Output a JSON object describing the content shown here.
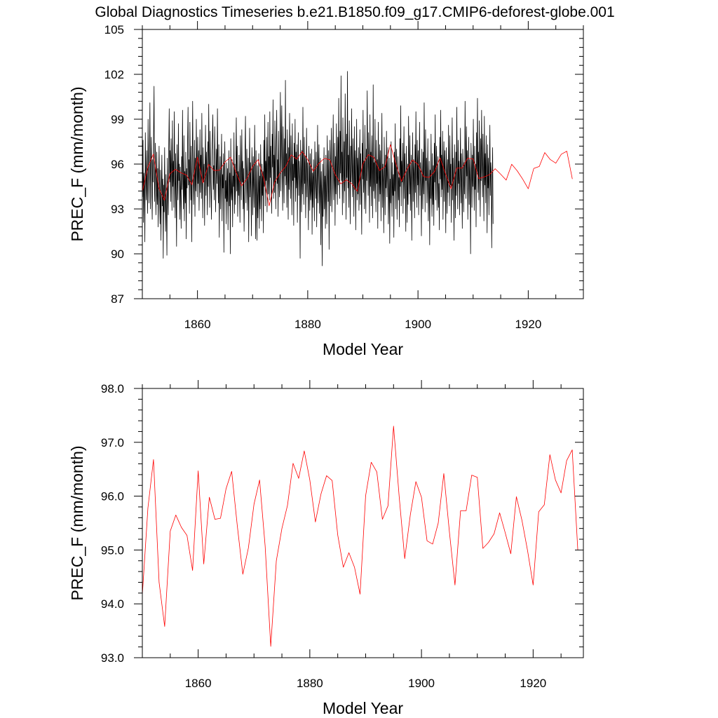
{
  "figure": {
    "title": "Global Diagnostics Timeseries b.e21.B1850.f09_g17.CMIP6-deforest-globe.001"
  },
  "chart_data": [
    {
      "type": "line",
      "title": "Global Diagnostics Timeseries b.e21.B1850.f09_g17.CMIP6-deforest-globe.001",
      "xlabel": "Model Year",
      "ylabel": "PREC_F (mm/month)",
      "xlim": [
        1850,
        1930
      ],
      "ylim": [
        87,
        105
      ],
      "xticks": [
        1860,
        1880,
        1900,
        1920
      ],
      "yticks": [
        87,
        90,
        93,
        96,
        99,
        102,
        105
      ],
      "ytick_labels": [
        "87",
        "90",
        "93",
        "96",
        "99",
        "102",
        "105"
      ],
      "grid": false,
      "legend": "none",
      "series": [
        {
          "kind": "monthly",
          "color": "#000000",
          "start": 1850.0417,
          "step": 0.08333,
          "values": [
            93.8,
            97.6,
            92.1,
            95.4,
            94.7,
            90.8,
            98.1,
            95.2,
            93.6,
            96.9,
            94.4,
            92.7,
            99.0,
            95.9,
            93.4,
            96.6,
            100.1,
            93.0,
            95.7,
            97.8,
            94.2,
            92.3,
            96.3,
            94.8,
            98.0,
            101.2,
            93.5,
            95.1,
            97.4,
            92.6,
            94.0,
            96.8,
            93.3,
            95.7,
            91.8,
            94.9,
            97.2,
            93.9,
            92.0,
            95.6,
            90.9,
            94.2,
            96.6,
            93.2,
            95.0,
            89.7,
            94.6,
            92.8,
            97.1,
            93.4,
            91.5,
            95.3,
            93.0,
            89.9,
            96.4,
            94.1,
            92.6,
            97.0,
            99.7,
            94.8,
            96.9,
            93.5,
            97.7,
            95.6,
            92.9,
            98.9,
            94.5,
            96.2,
            93.1,
            99.5,
            95.8,
            92.4,
            96.7,
            94.0,
            90.5,
            97.3,
            95.0,
            93.6,
            98.7,
            94.9,
            96.0,
            92.3,
            95.8,
            93.8,
            91.7,
            96.5,
            94.3,
            99.6,
            95.2,
            93.0,
            97.9,
            92.2,
            95.5,
            93.4,
            96.8,
            91.0,
            95.7,
            94.4,
            97.4,
            99.8,
            94.6,
            96.3,
            92.7,
            98.8,
            95.9,
            93.6,
            97.2,
            90.8,
            94.9,
            100.2,
            96.1,
            93.3,
            95.0,
            97.6,
            92.5,
            96.4,
            94.2,
            99.0,
            95.6,
            93.8,
            97.8,
            94.7,
            96.9,
            92.9,
            95.4,
            98.3,
            94.1,
            96.6,
            93.7,
            99.4,
            95.3,
            92.4,
            97.1,
            94.8,
            96.0,
            91.9,
            95.7,
            98.6,
            93.9,
            96.8,
            95.2,
            92.6,
            97.5,
            94.5,
            100.0,
            96.2,
            93.1,
            98.2,
            95.5,
            94.0,
            92.3,
            96.9,
            97.8,
            99.3,
            94.3,
            95.9,
            93.6,
            98.5,
            96.4,
            92.8,
            95.1,
            97.0,
            94.7,
            99.7,
            95.6,
            93.4,
            97.3,
            91.1,
            94.8,
            96.5,
            93.0,
            95.8,
            98.0,
            92.2,
            95.3,
            94.4,
            96.7,
            90.1,
            95.0,
            97.5,
            93.7,
            94.9,
            92.0,
            96.1,
            93.5,
            95.7,
            91.6,
            94.6,
            96.9,
            93.2,
            95.4,
            90.0,
            97.7,
            94.1,
            93.6,
            96.3,
            91.8,
            95.2,
            94.5,
            98.1,
            92.7,
            96.0,
            93.3,
            95.9,
            99.1,
            94.2,
            97.2,
            92.5,
            95.5,
            93.9,
            96.6,
            94.3,
            92.1,
            97.9,
            95.0,
            93.6,
            98.3,
            94.8,
            96.2,
            93.0,
            95.7,
            91.5,
            94.1,
            96.8,
            99.2,
            93.4,
            95.3,
            97.0,
            92.9,
            94.6,
            96.4,
            90.8,
            95.1,
            98.4,
            93.8,
            96.1,
            94.0,
            91.2,
            97.1,
            95.8,
            92.6,
            96.5,
            94.7,
            93.1,
            98.6,
            95.4,
            91.0,
            96.9,
            93.5,
            90.9,
            95.9,
            92.4,
            94.3,
            96.7,
            91.7,
            95.2,
            93.0,
            97.3,
            94.8,
            92.2,
            96.0,
            93.9,
            95.5,
            91.4,
            97.6,
            94.5,
            99.3,
            93.2,
            96.2,
            94.9,
            97.8,
            92.8,
            95.6,
            98.8,
            94.0,
            96.5,
            93.6,
            99.5,
            95.1,
            97.2,
            94.4,
            92.7,
            98.0,
            95.8,
            100.3,
            93.7,
            96.6,
            94.1,
            98.9,
            95.3,
            93.0,
            97.5,
            99.6,
            94.7,
            96.3,
            92.5,
            98.2,
            95.0,
            93.8,
            97.0,
            100.8,
            94.2,
            96.9,
            99.9,
            95.5,
            92.9,
            98.5,
            96.1,
            93.4,
            97.7,
            95.2,
            101.6,
            94.6,
            96.7,
            93.1,
            98.3,
            95.9,
            92.3,
            97.1,
            94.3,
            99.4,
            96.4,
            93.7,
            97.9,
            95.4,
            92.6,
            98.7,
            94.9,
            96.0,
            91.9,
            97.4,
            95.1,
            99.0,
            93.5,
            96.8,
            94.4,
            97.3,
            92.1,
            95.8,
            98.1,
            93.9,
            96.2,
            94.8,
            89.7,
            97.6,
            95.6,
            92.8,
            96.9,
            94.0,
            99.8,
            95.3,
            93.3,
            97.8,
            94.7,
            96.5,
            92.4,
            95.0,
            98.4,
            93.8,
            96.1,
            94.5,
            91.6,
            97.2,
            95.7,
            92.9,
            96.7,
            93.6,
            94.2,
            97.0,
            91.3,
            95.4,
            93.1,
            96.3,
            94.9,
            92.2,
            97.5,
            95.1,
            93.7,
            96.8,
            91.8,
            94.6,
            98.6,
            93.4,
            95.9,
            97.3,
            92.7,
            94.3,
            96.4,
            90.6,
            95.5,
            93.9,
            89.2,
            96.0,
            92.5,
            94.8,
            97.1,
            93.0,
            95.2,
            91.7,
            96.6,
            94.1,
            92.0,
            97.9,
            95.6,
            93.5,
            96.9,
            90.3,
            94.7,
            97.6,
            93.2,
            95.8,
            98.4,
            92.8,
            94.5,
            96.2,
            99.3,
            93.6,
            95.0,
            97.4,
            91.9,
            96.5,
            94.0,
            98.7,
            95.3,
            93.3,
            97.8,
            94.6,
            100.4,
            96.1,
            93.7,
            98.2,
            95.4,
            101.9,
            94.9,
            96.8,
            92.6,
            99.1,
            95.9,
            93.4,
            97.5,
            94.2,
            100.7,
            96.3,
            92.3,
            98.0,
            95.1,
            102.2,
            94.4,
            96.6,
            93.1,
            98.9,
            95.7,
            92.0,
            97.2,
            94.8,
            99.7,
            96.0,
            93.8,
            97.7,
            95.2,
            92.5,
            98.5,
            94.3,
            96.9,
            91.6,
            95.5,
            99.0,
            93.6,
            96.4,
            94.0,
            97.1,
            92.9,
            95.8,
            98.3,
            93.3,
            96.7,
            94.6,
            91.3,
            97.4,
            95.0,
            99.6,
            94.1,
            96.2,
            93.0,
            98.6,
            95.6,
            92.7,
            97.0,
            94.9,
            100.9,
            96.5,
            93.9,
            98.1,
            95.3,
            92.1,
            99.3,
            94.5,
            96.8,
            93.2,
            97.9,
            95.9,
            92.4,
            101.3,
            94.2,
            96.1,
            93.7,
            99.0,
            95.1,
            92.8,
            97.6,
            94.7,
            96.3,
            91.7,
            98.8,
            95.4,
            93.5,
            97.3,
            94.0,
            96.9,
            92.2,
            95.7,
            99.4,
            93.1,
            96.0,
            94.8,
            91.4,
            97.8,
            95.2,
            92.6,
            96.6,
            94.4,
            98.2,
            93.8,
            95.5,
            97.1,
            92.0,
            94.1,
            96.4,
            90.7,
            95.0,
            93.4,
            97.5,
            94.6,
            92.5,
            96.1,
            93.9,
            95.3,
            91.1,
            96.8,
            94.2,
            98.7,
            93.0,
            95.8,
            97.0,
            92.3,
            94.9,
            96.5,
            93.6,
            95.1,
            91.8,
            97.7,
            94.5,
            99.9,
            93.2,
            96.2,
            94.8,
            97.4,
            92.7,
            95.6,
            98.5,
            93.7,
            96.7,
            94.3,
            91.5,
            97.2,
            95.4,
            92.1,
            96.0,
            93.3,
            99.2,
            95.9,
            94.0,
            97.9,
            92.9,
            95.0,
            96.6,
            90.9,
            94.7,
            98.1,
            93.5,
            96.3,
            95.2,
            92.4,
            97.3,
            94.1,
            99.5,
            95.7,
            93.1,
            97.6,
            94.6,
            96.9,
            92.6,
            95.5,
            98.8,
            93.9,
            96.1,
            94.4,
            91.2,
            97.0,
            95.3,
            93.0,
            96.8,
            94.0,
            100.1,
            95.8,
            92.8,
            98.3,
            94.9,
            96.4,
            93.4,
            95.1,
            97.7,
            92.2,
            94.5,
            96.2,
            90.6,
            95.6,
            93.7,
            98.0,
            94.2,
            92.5,
            96.7,
            93.3,
            95.9,
            91.9,
            97.4,
            94.8,
            99.3,
            93.6,
            96.0,
            97.2,
            92.9,
            95.2,
            96.5,
            93.1,
            94.7,
            91.6,
            97.8,
            95.0,
            99.6,
            93.8,
            96.6,
            94.3,
            98.2,
            92.3,
            95.7,
            97.5,
            93.5,
            96.9,
            94.9,
            91.4,
            97.1,
            95.5,
            92.7,
            96.3,
            94.1,
            98.6,
            95.3,
            93.2,
            97.9,
            94.6,
            96.0,
            92.1,
            95.8,
            99.1,
            93.6,
            96.4,
            94.4,
            90.9,
            97.3,
            95.1,
            92.4,
            96.8,
            93.9,
            99.8,
            95.6,
            93.0,
            97.6,
            94.7,
            96.2,
            92.6,
            95.4,
            98.4,
            93.4,
            96.7,
            94.2,
            91.7,
            97.0,
            95.9,
            92.8,
            96.1,
            94.0,
            100.2,
            96.5,
            93.7,
            98.5,
            95.2,
            96.9,
            92.3,
            95.0,
            97.8,
            93.3,
            96.3,
            94.8,
            90.0,
            97.4,
            95.7,
            93.1,
            96.6,
            94.5,
            99.0,
            95.1,
            92.9,
            97.2,
            94.3,
            96.0,
            91.8,
            98.1,
            95.5,
            100.4,
            94.1,
            96.8,
            93.6,
            98.9,
            95.8,
            92.5,
            97.7,
            94.9,
            99.6,
            96.2,
            93.8,
            98.0,
            95.3,
            92.2,
            99.2,
            94.6,
            96.7,
            93.4,
            97.9,
            95.0,
            91.4,
            97.3,
            94.4,
            96.4,
            92.6,
            95.6,
            98.6,
            93.9,
            96.1,
            95.4,
            90.4,
            94.7,
            97.1,
            92.0
          ]
        },
        {
          "kind": "annual",
          "color": "#ff0000",
          "values": [
            94.17,
            95.78,
            96.68,
            94.4,
            93.58,
            95.35,
            95.65,
            95.42,
            95.27,
            94.62,
            96.47,
            94.74,
            95.98,
            95.57,
            95.59,
            96.14,
            96.46,
            95.46,
            94.55,
            95.04,
            95.85,
            96.3,
            95.07,
            93.21,
            94.8,
            95.4,
            95.83,
            96.61,
            96.33,
            96.84,
            96.3,
            95.52,
            96.04,
            96.38,
            96.29,
            95.28,
            94.68,
            94.95,
            94.68,
            94.18,
            96.01,
            96.63,
            96.45,
            95.57,
            95.82,
            97.3,
            96.0,
            94.84,
            95.65,
            96.27,
            95.98,
            95.17,
            95.11,
            95.5,
            96.42,
            95.34,
            94.35,
            95.73,
            95.73,
            96.39,
            96.35,
            95.03,
            95.14,
            95.3,
            95.69,
            95.32,
            94.93,
            95.99,
            95.55,
            94.99,
            94.35,
            95.71,
            95.84,
            96.77,
            96.3,
            96.06,
            96.66,
            96.86,
            95.0
          ]
        }
      ]
    },
    {
      "type": "line",
      "title": "",
      "xlabel": "Model Year",
      "ylabel": "PREC_F (mm/month)",
      "xlim": [
        1850,
        1929
      ],
      "ylim": [
        93,
        98
      ],
      "xticks": [
        1860,
        1880,
        1900,
        1920
      ],
      "yticks": [
        93,
        94,
        95,
        96,
        97,
        98
      ],
      "ytick_labels": [
        "93.0",
        "94.0",
        "95.0",
        "96.0",
        "97.0",
        "98.0"
      ],
      "grid": false,
      "legend": "none",
      "series": [
        {
          "kind": "annual",
          "color": "#ff0000",
          "values": [
            94.17,
            95.78,
            96.68,
            94.4,
            93.58,
            95.35,
            95.65,
            95.42,
            95.27,
            94.62,
            96.47,
            94.74,
            95.98,
            95.57,
            95.59,
            96.14,
            96.46,
            95.46,
            94.55,
            95.04,
            95.85,
            96.3,
            95.07,
            93.21,
            94.8,
            95.4,
            95.83,
            96.61,
            96.33,
            96.84,
            96.3,
            95.52,
            96.04,
            96.38,
            96.29,
            95.28,
            94.68,
            94.95,
            94.68,
            94.18,
            96.01,
            96.63,
            96.45,
            95.57,
            95.82,
            97.3,
            96.0,
            94.84,
            95.65,
            96.27,
            95.98,
            95.17,
            95.11,
            95.5,
            96.42,
            95.34,
            94.35,
            95.73,
            95.73,
            96.39,
            96.35,
            95.03,
            95.14,
            95.3,
            95.69,
            95.32,
            94.93,
            95.99,
            95.55,
            94.99,
            94.35,
            95.71,
            95.84,
            96.77,
            96.3,
            96.06,
            96.66,
            96.86,
            95.0
          ]
        }
      ]
    }
  ]
}
